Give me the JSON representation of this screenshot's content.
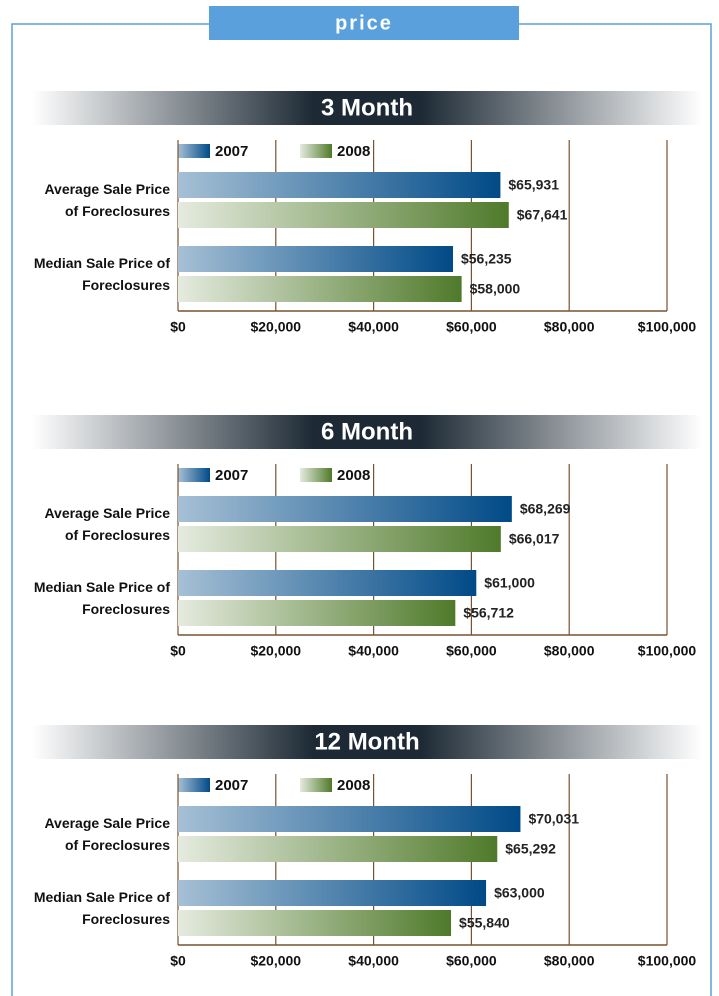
{
  "header": "price",
  "chart_data": [
    {
      "type": "barh",
      "title": "3 Month",
      "categories": [
        "Average Sale Price of Foreclosures",
        "Median Sale Price of Foreclosures"
      ],
      "series": [
        {
          "name": "2007",
          "color": "#004a87",
          "values": [
            65931,
            56235
          ],
          "value_labels": [
            "$65,931",
            "$56,235"
          ]
        },
        {
          "name": "2008",
          "color": "#4f7a2a",
          "values": [
            67641,
            58000
          ],
          "value_labels": [
            "$67,641",
            "$58,000"
          ]
        }
      ],
      "xlim": [
        0,
        100000
      ],
      "xticks": [
        {
          "value": 0,
          "label": "$0"
        },
        {
          "value": 20000,
          "label": "$20,000"
        },
        {
          "value": 40000,
          "label": "$40,000"
        },
        {
          "value": 60000,
          "label": "$60,000"
        },
        {
          "value": 80000,
          "label": "$80,000"
        },
        {
          "value": 100000,
          "label": "$100,000"
        }
      ],
      "grid": true
    },
    {
      "type": "barh",
      "title": "6 Month",
      "categories": [
        "Average Sale Price of Foreclosures",
        "Median Sale Price of Foreclosures"
      ],
      "series": [
        {
          "name": "2007",
          "color": "#004a87",
          "values": [
            68269,
            61000
          ],
          "value_labels": [
            "$68,269",
            "$61,000"
          ]
        },
        {
          "name": "2008",
          "color": "#4f7a2a",
          "values": [
            66017,
            56712
          ],
          "value_labels": [
            "$66,017",
            "$56,712"
          ]
        }
      ],
      "xlim": [
        0,
        100000
      ],
      "xticks": [
        {
          "value": 0,
          "label": "$0"
        },
        {
          "value": 20000,
          "label": "$20,000"
        },
        {
          "value": 40000,
          "label": "$40,000"
        },
        {
          "value": 60000,
          "label": "$60,000"
        },
        {
          "value": 80000,
          "label": "$80,000"
        },
        {
          "value": 100000,
          "label": "$100,000"
        }
      ],
      "grid": true
    },
    {
      "type": "barh",
      "title": "12 Month",
      "categories": [
        "Average Sale Price of Foreclosures",
        "Median Sale Price of Foreclosures"
      ],
      "series": [
        {
          "name": "2007",
          "color": "#004a87",
          "values": [
            70031,
            63000
          ],
          "value_labels": [
            "$70,031",
            "$63,000"
          ]
        },
        {
          "name": "2008",
          "color": "#4f7a2a",
          "values": [
            65292,
            55840
          ],
          "value_labels": [
            "$65,292",
            "$55,840"
          ]
        }
      ],
      "xlim": [
        0,
        100000
      ],
      "xticks": [
        {
          "value": 0,
          "label": "$0"
        },
        {
          "value": 20000,
          "label": "$20,000"
        },
        {
          "value": 40000,
          "label": "$40,000"
        },
        {
          "value": 60000,
          "label": "$60,000"
        },
        {
          "value": 80000,
          "label": "$80,000"
        },
        {
          "value": 100000,
          "label": "$100,000"
        }
      ],
      "grid": true
    }
  ]
}
